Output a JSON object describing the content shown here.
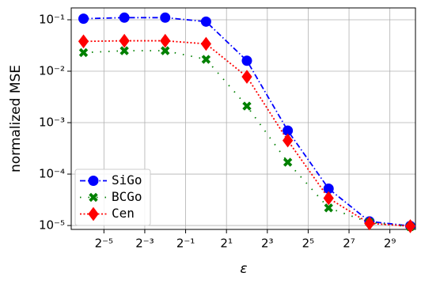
{
  "chart_data": {
    "type": "line",
    "xlabel": "ε",
    "ylabel": "normalized MSE",
    "x": [
      0.015625,
      0.0625,
      0.25,
      1,
      4,
      16,
      64,
      256,
      1024
    ],
    "series": [
      {
        "name": "SiGo",
        "color": "#0000ff",
        "marker": "circle",
        "dash": "dashdot",
        "values": [
          0.105,
          0.11,
          0.11,
          0.092,
          0.016,
          0.0007,
          5.2e-05,
          1.2e-05,
          9.8e-06
        ]
      },
      {
        "name": "BCGo",
        "color": "#008000",
        "marker": "x",
        "dash": "sparse-dot",
        "values": [
          0.023,
          0.025,
          0.025,
          0.017,
          0.0021,
          0.00017,
          2.2e-05,
          1.15e-05,
          9.5e-06
        ]
      },
      {
        "name": "Cen",
        "color": "#ff0000",
        "marker": "diamond",
        "dash": "dotted",
        "values": [
          0.038,
          0.039,
          0.039,
          0.034,
          0.0078,
          0.00045,
          3.4e-05,
          1.1e-05,
          9.7e-06
        ]
      }
    ],
    "xscale": "log2",
    "yscale": "log10",
    "xlim": [
      0.0103,
      1220
    ],
    "ylim": [
      8.4e-06,
      0.17
    ],
    "xticks": [
      {
        "value": 0.03125,
        "label": "2⁻⁵"
      },
      {
        "value": 0.125,
        "label": "2⁻³"
      },
      {
        "value": 0.5,
        "label": "2⁻¹"
      },
      {
        "value": 2,
        "label": "2¹"
      },
      {
        "value": 8,
        "label": "2³"
      },
      {
        "value": 32,
        "label": "2⁵"
      },
      {
        "value": 128,
        "label": "2⁷"
      },
      {
        "value": 512,
        "label": "2⁹"
      }
    ],
    "yticks": [
      {
        "value": 0.1,
        "label": "10⁻¹"
      },
      {
        "value": 0.01,
        "label": "10⁻²"
      },
      {
        "value": 0.001,
        "label": "10⁻³"
      },
      {
        "value": 0.0001,
        "label": "10⁻⁴"
      },
      {
        "value": 1e-05,
        "label": "10⁻⁵"
      }
    ],
    "grid": true,
    "legend": "lower left"
  }
}
